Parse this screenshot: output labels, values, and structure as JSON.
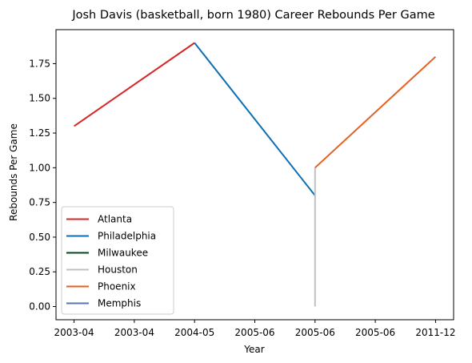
{
  "chart_data": {
    "type": "line",
    "title": "Josh Davis (basketball, born 1980) Career Rebounds Per Game",
    "xlabel": "Year",
    "ylabel": "Rebounds Per Game",
    "x_tick_labels": [
      "2003-04",
      "2003-04",
      "2004-05",
      "2005-06",
      "2005-06",
      "2005-06",
      "2011-12"
    ],
    "x_tick_positions": [
      0,
      0.5,
      1,
      1.5,
      2,
      2.5,
      3
    ],
    "xlim": [
      -0.15,
      3.15
    ],
    "ylim": [
      -0.095,
      1.995
    ],
    "y_ticks": [
      0.0,
      0.25,
      0.5,
      0.75,
      1.0,
      1.25,
      1.5,
      1.75
    ],
    "y_tick_labels": [
      "0.00",
      "0.25",
      "0.50",
      "0.75",
      "1.00",
      "1.25",
      "1.50",
      "1.75"
    ],
    "series": [
      {
        "name": "Atlanta",
        "color": "#d62728",
        "x": [
          0,
          1
        ],
        "y": [
          1.3,
          1.9
        ]
      },
      {
        "name": "Philadelphia",
        "color": "#0a6eb4",
        "x": [
          1,
          2
        ],
        "y": [
          1.9,
          0.8
        ]
      },
      {
        "name": "Milwaukee",
        "color": "#00471b",
        "x": [
          2,
          2
        ],
        "y": [
          0.0,
          0.0
        ]
      },
      {
        "name": "Houston",
        "color": "#c0c0c0",
        "x": [
          2,
          2
        ],
        "y": [
          0.0,
          1.0
        ]
      },
      {
        "name": "Phoenix",
        "color": "#e56020",
        "x": [
          2,
          3
        ],
        "y": [
          1.0,
          1.8
        ]
      },
      {
        "name": "Memphis",
        "color": "#5d76a9",
        "x": [
          2,
          2
        ],
        "y": [
          0.0,
          0.0
        ]
      }
    ],
    "grid": false,
    "legend_position": "lower-left"
  }
}
